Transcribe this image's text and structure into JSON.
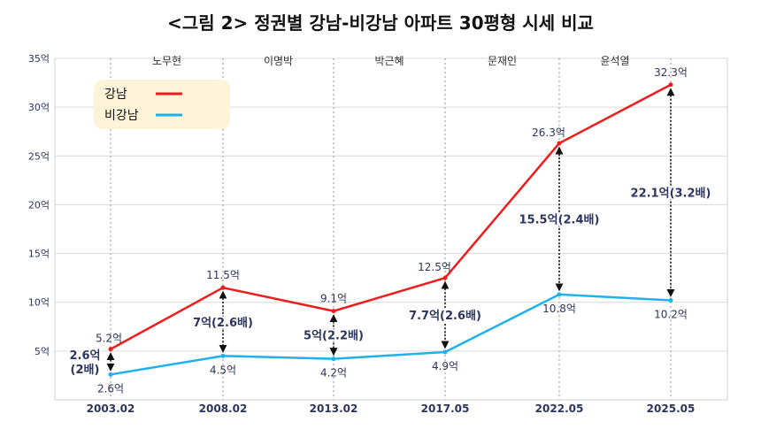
{
  "title": "<그림 2> 정권별 강남-비강남 아파트 30평형 시세 비교",
  "chart_data": {
    "type": "line",
    "categories": [
      "2003.02",
      "2008.02",
      "2013.02",
      "2017.05",
      "2022.05",
      "2025.05"
    ],
    "series": [
      {
        "name": "강남",
        "color": "#ee1c1c",
        "values": [
          5.2,
          11.5,
          9.1,
          12.5,
          26.3,
          32.3
        ],
        "labels": [
          "5.2억",
          "11.5억",
          "9.1억",
          "12.5억",
          "26.3억",
          "32.3억"
        ]
      },
      {
        "name": "비강남",
        "color": "#1fb2ea",
        "values": [
          2.6,
          4.5,
          4.2,
          4.9,
          10.8,
          10.2
        ],
        "labels": [
          "2.6억",
          "4.5억",
          "4.2억",
          "4.9억",
          "10.8억",
          "10.2억"
        ]
      }
    ],
    "gaps": [
      {
        "lines": [
          "2.6억",
          "(2배)"
        ]
      },
      {
        "lines": [
          "7억(2.6배)"
        ]
      },
      {
        "lines": [
          "5억(2.2배)"
        ]
      },
      {
        "lines": [
          "7.7억(2.6배)"
        ]
      },
      {
        "lines": [
          "15.5억(2.4배)"
        ]
      },
      {
        "lines": [
          "22.1억(3.2배)"
        ]
      }
    ],
    "administrations": [
      "노무현",
      "이명박",
      "박근혜",
      "문재인",
      "윤석열"
    ],
    "y_ticks": [
      "35억",
      "30억",
      "25억",
      "20억",
      "15억",
      "10억",
      "5억"
    ],
    "ylim": [
      0,
      35
    ],
    "grid": true,
    "legend": "top-left"
  }
}
